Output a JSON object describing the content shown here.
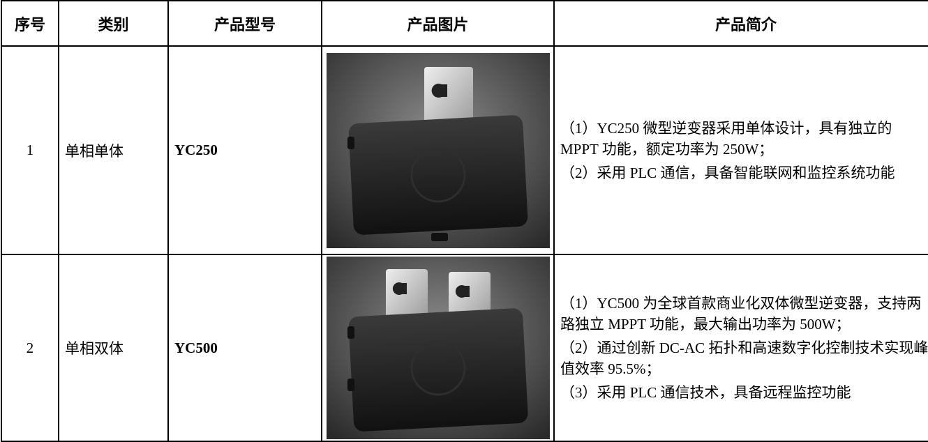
{
  "table": {
    "headers": [
      "序号",
      "类别",
      "产品型号",
      "产品图片",
      "产品简介"
    ],
    "rows": [
      {
        "no": "1",
        "category": "单相单体",
        "model": "YC250",
        "description": [
          "（1）YC250 微型逆变器采用单体设计，具有独立的 MPPT 功能，额定功率为 250W；",
          "（2）采用 PLC 通信，具备智能联网和监控系统功能"
        ]
      },
      {
        "no": "2",
        "category": "单相双体",
        "model": "YC500",
        "description": [
          "（1）YC500 为全球首款商业化双体微型逆变器，支持两路独立 MPPT 功能，最大输出功率为 500W；",
          "（2）通过创新 DC-AC 拓扑和高速数字化控制技术实现峰值效率 95.5%；",
          "（3）采用 PLC 通信技术，具备远程监控功能"
        ]
      }
    ]
  }
}
